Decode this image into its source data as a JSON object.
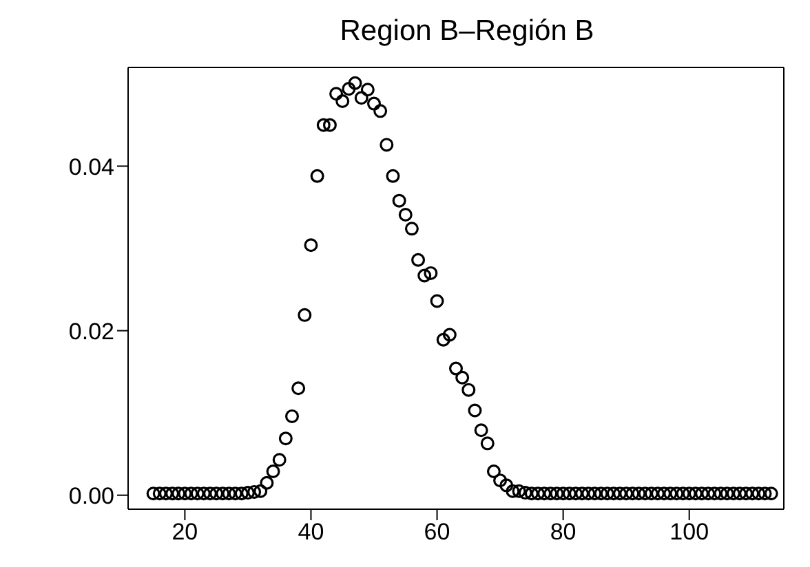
{
  "chart_data": {
    "type": "scatter",
    "title": "Region B–Región B",
    "x": [
      15,
      16,
      17,
      18,
      19,
      20,
      21,
      22,
      23,
      24,
      25,
      26,
      27,
      28,
      29,
      30,
      31,
      32,
      33,
      34,
      35,
      36,
      37,
      38,
      39,
      40,
      41,
      42,
      43,
      44,
      45,
      46,
      47,
      48,
      49,
      50,
      51,
      52,
      53,
      54,
      55,
      56,
      57,
      58,
      59,
      60,
      61,
      62,
      63,
      64,
      65,
      66,
      67,
      68,
      69,
      70,
      71,
      72,
      73,
      74,
      75,
      76,
      77,
      78,
      79,
      80,
      81,
      82,
      83,
      84,
      85,
      86,
      87,
      88,
      89,
      90,
      91,
      92,
      93,
      94,
      95,
      96,
      97,
      98,
      99,
      100,
      101,
      102,
      103,
      104,
      105,
      106,
      107,
      108,
      109,
      110,
      111,
      112,
      113
    ],
    "series": [
      {
        "color": "#000000",
        "values": [
          0.0002,
          0.0002,
          0.0002,
          0.0002,
          0.0002,
          0.0002,
          0.0002,
          0.0002,
          0.0002,
          0.0002,
          0.0002,
          0.0002,
          0.0002,
          0.0002,
          0.0002,
          0.0003,
          0.0004,
          0.0005,
          0.0015,
          0.0029,
          0.0043,
          0.0069,
          0.0096,
          0.013,
          0.0219,
          0.0304,
          0.0388,
          0.045,
          0.045,
          0.0488,
          0.0479,
          0.0494,
          0.0501,
          0.0483,
          0.0493,
          0.0476,
          0.0467,
          0.0426,
          0.0388,
          0.0358,
          0.0341,
          0.0324,
          0.0286,
          0.0267,
          0.027,
          0.0236,
          0.0189,
          0.0195,
          0.0154,
          0.0143,
          0.0128,
          0.0103,
          0.0079,
          0.0063,
          0.0029,
          0.0018,
          0.0012,
          0.0005,
          0.0005,
          0.0003,
          0.0002,
          0.0002,
          0.0002,
          0.0002,
          0.0002,
          0.0002,
          0.0002,
          0.0002,
          0.0002,
          0.0002,
          0.0002,
          0.0002,
          0.0002,
          0.0002,
          0.0002,
          0.0002,
          0.0002,
          0.0002,
          0.0002,
          0.0002,
          0.0002,
          0.0002,
          0.0002,
          0.0002,
          0.0002,
          0.0002,
          0.0002,
          0.0002,
          0.0002,
          0.0002,
          0.0002,
          0.0002,
          0.0002,
          0.0002,
          0.0002,
          0.0002,
          0.0002,
          0.0002,
          0.0002
        ]
      }
    ],
    "xlim": [
      11,
      115
    ],
    "xticks": [
      20,
      40,
      60,
      80,
      100
    ],
    "ylim": [
      -0.0017,
      0.052
    ],
    "yticks": [
      {
        "value": 0,
        "label": "0.00"
      },
      {
        "value": 0.02,
        "label": "0.02"
      },
      {
        "value": 0.04,
        "label": "0.04"
      }
    ],
    "marker": "circle",
    "grid": false,
    "legend": false
  }
}
